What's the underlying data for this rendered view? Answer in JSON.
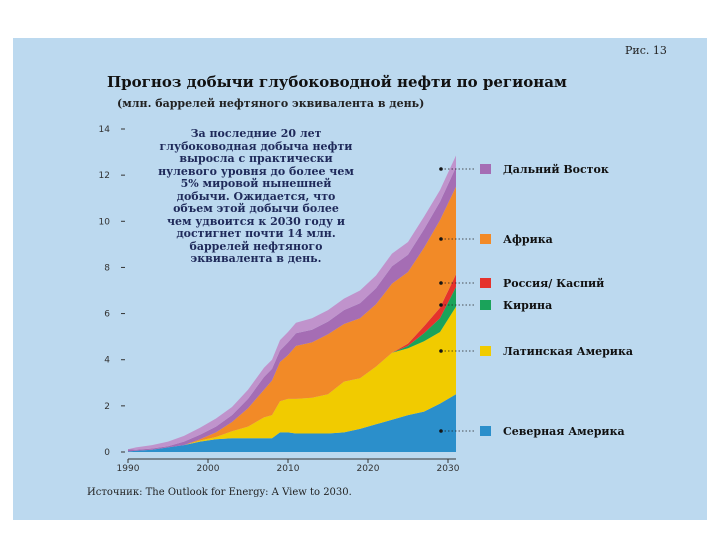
{
  "figure_label": "Рис. 13",
  "source": "Источник: The Outlook for Energy: A View to 2030.",
  "colors": {
    "background": "#bcd9ef",
    "north_america": "#2b8fcb",
    "latin_america": "#f1cb00",
    "china": "#1aa35a",
    "russia_caspian": "#e5322c",
    "africa": "#f28a27",
    "far_east": "#a56db4",
    "upper_band": "#c093cc"
  },
  "chart_data": {
    "type": "area",
    "stacked": true,
    "title": "Прогноз добычи глубоководной нефти по регионам",
    "subtitle": "(млн. баррелей нефтяного эквивалента в день)",
    "annotation": "За последние 20 лет\nглубоководная добыча нефти\nвыросла с практически\nнулевого уровня до более чем\n5% мировой нынешней\nдобычи. Ожидается, что\nобъем этой добычи более\nчем удвоится к 2030 году и\nдостигнет почти 14 млн.\nбаррелей нефтяного\nэквивалента в день.",
    "ylim": [
      0,
      14
    ],
    "xlim": [
      1990,
      2031
    ],
    "yticks": [
      0,
      2,
      4,
      6,
      8,
      10,
      12,
      14
    ],
    "xticks": [
      1990,
      2000,
      2010,
      2020,
      2030
    ],
    "x": [
      1990,
      1991,
      1993,
      1995,
      1997,
      1999,
      2001,
      2003,
      2005,
      2007,
      2008,
      2009,
      2010,
      2011,
      2013,
      2015,
      2017,
      2019,
      2021,
      2023,
      2025,
      2027,
      2029,
      2031
    ],
    "series": [
      {
        "name": "Северная Америка",
        "key": "north_america",
        "values": [
          0.02,
          0.05,
          0.1,
          0.2,
          0.3,
          0.45,
          0.55,
          0.6,
          0.6,
          0.6,
          0.6,
          0.85,
          0.85,
          0.8,
          0.8,
          0.8,
          0.85,
          1.0,
          1.2,
          1.4,
          1.6,
          1.75,
          2.1,
          2.5
        ]
      },
      {
        "name": "Латинская Америка",
        "key": "latin_america",
        "values": [
          0.0,
          0.0,
          0.0,
          0.0,
          0.0,
          0.05,
          0.1,
          0.3,
          0.5,
          0.9,
          1.0,
          1.35,
          1.45,
          1.5,
          1.55,
          1.7,
          2.2,
          2.2,
          2.5,
          2.9,
          2.9,
          3.05,
          3.1,
          3.8
        ]
      },
      {
        "name": "Кирина",
        "key": "china",
        "values": [
          0,
          0,
          0,
          0,
          0,
          0,
          0,
          0,
          0,
          0,
          0,
          0,
          0,
          0,
          0,
          0,
          0,
          0,
          0,
          0,
          0.1,
          0.35,
          0.6,
          0.85
        ]
      },
      {
        "name": "Россия/ Каспий",
        "key": "russia_caspian",
        "values": [
          0,
          0,
          0,
          0,
          0,
          0,
          0,
          0,
          0,
          0,
          0,
          0,
          0,
          0,
          0,
          0,
          0,
          0,
          0,
          0,
          0.1,
          0.3,
          0.45,
          0.55
        ]
      },
      {
        "name": "Африка",
        "key": "africa",
        "values": [
          0.0,
          0.0,
          0.0,
          0.0,
          0.0,
          0.05,
          0.2,
          0.4,
          0.8,
          1.2,
          1.5,
          1.7,
          1.9,
          2.3,
          2.4,
          2.6,
          2.5,
          2.6,
          2.7,
          3.0,
          3.1,
          3.4,
          3.8,
          3.8
        ]
      },
      {
        "name": "Дальний Восток",
        "key": "far_east",
        "values": [
          0.1,
          0.05,
          0.05,
          0.05,
          0.15,
          0.2,
          0.25,
          0.3,
          0.4,
          0.55,
          0.5,
          0.5,
          0.55,
          0.55,
          0.55,
          0.55,
          0.6,
          0.65,
          0.7,
          0.75,
          0.75,
          0.8,
          0.8,
          0.85
        ]
      },
      {
        "name": "",
        "key": "upper_band",
        "values": [
          0.0,
          0.1,
          0.15,
          0.2,
          0.25,
          0.3,
          0.35,
          0.35,
          0.4,
          0.4,
          0.4,
          0.45,
          0.45,
          0.45,
          0.5,
          0.5,
          0.5,
          0.55,
          0.55,
          0.55,
          0.55,
          0.55,
          0.5,
          0.5
        ]
      }
    ],
    "legend": [
      {
        "label": "Дальний Восток",
        "key": "far_east"
      },
      {
        "label": "Африка",
        "key": "africa"
      },
      {
        "label": "Россия/ Каспий",
        "key": "russia_caspian"
      },
      {
        "label": "Кирина",
        "key": "china"
      },
      {
        "label": "Латинская Америка",
        "key": "latin_america"
      },
      {
        "label": "Северная Америка",
        "key": "north_america"
      }
    ]
  }
}
